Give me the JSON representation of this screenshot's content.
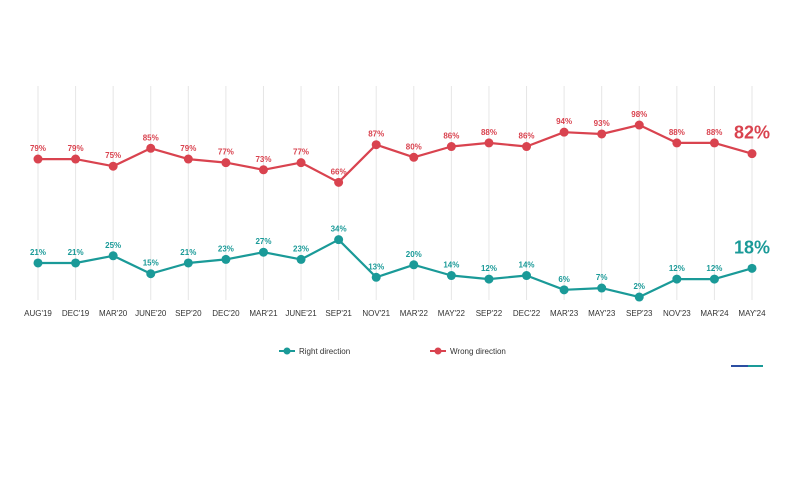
{
  "chart_data": {
    "type": "line",
    "title": "",
    "xlabel": "",
    "ylabel": "",
    "categories": [
      "AUG'19",
      "DEC'19",
      "MAR'20",
      "JUNE'20",
      "SEP'20",
      "DEC'20",
      "MAR'21",
      "JUNE'21",
      "SEP'21",
      "NOV'21",
      "MAR'22",
      "MAY'22",
      "SEP'22",
      "DEC'22",
      "MAR'23",
      "MAY'23",
      "SEP'23",
      "NOV'23",
      "MAR'24",
      "MAY'24"
    ],
    "series": [
      {
        "name": "Wrong direction",
        "color": "#d9434f",
        "values": [
          79,
          79,
          75,
          85,
          79,
          77,
          73,
          77,
          66,
          87,
          80,
          86,
          88,
          86,
          94,
          93,
          98,
          88,
          88,
          82
        ],
        "labels": [
          "79%",
          "79%",
          "75%",
          "85%",
          "79%",
          "77%",
          "73%",
          "77%",
          "66%",
          "87%",
          "80%",
          "86%",
          "88%",
          "86%",
          "94%",
          "93%",
          "98%",
          "88%",
          "88%",
          "82%"
        ]
      },
      {
        "name": "Right direction",
        "color": "#1a9a98",
        "values": [
          21,
          21,
          25,
          15,
          21,
          23,
          27,
          23,
          34,
          13,
          20,
          14,
          12,
          14,
          6,
          7,
          2,
          12,
          12,
          18
        ],
        "labels": [
          "21%",
          "21%",
          "25%",
          "15%",
          "21%",
          "23%",
          "27%",
          "23%",
          "34%",
          "13%",
          "20%",
          "14%",
          "12%",
          "14%",
          "6%",
          "7%",
          "2%",
          "12%",
          "12%",
          "18%"
        ]
      }
    ],
    "grid": "vertical",
    "legend": "bottom-center"
  }
}
